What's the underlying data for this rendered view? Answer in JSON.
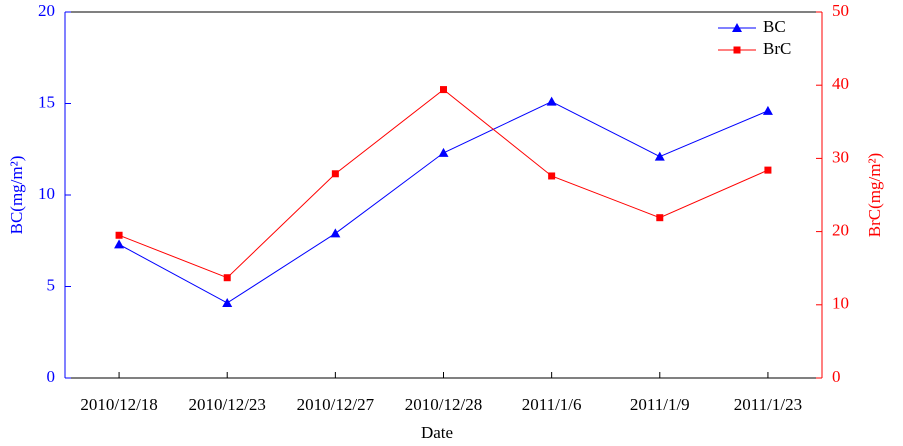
{
  "chart_data": {
    "type": "line",
    "xlabel": "Date",
    "ylabel": "BC(mg/m²)",
    "y2label": "BrC(mg/m²)",
    "categories": [
      "2010/12/18",
      "2010/12/23",
      "2010/12/27",
      "2010/12/28",
      "2011/1/6",
      "2011/1/9",
      "2011/1/23"
    ],
    "series": [
      {
        "name": "BC",
        "color": "#0000ff",
        "marker": "triangle",
        "values": [
          7.3,
          4.1,
          7.9,
          12.3,
          15.1,
          12.1,
          14.6
        ]
      },
      {
        "name": "BrC",
        "color": "#ff0000",
        "marker": "square",
        "axis": "y2",
        "values": [
          19.5,
          13.7,
          27.9,
          39.4,
          27.6,
          21.9,
          28.4
        ]
      }
    ],
    "ylim": [
      0,
      20
    ],
    "yticks": [
      0,
      5,
      10,
      15,
      20
    ],
    "y2lim": [
      0,
      50
    ],
    "y2ticks": [
      0,
      10,
      20,
      30,
      40,
      50
    ],
    "ycolor": "#0000ff",
    "y2color": "#ff0000",
    "legend": "upper right"
  }
}
